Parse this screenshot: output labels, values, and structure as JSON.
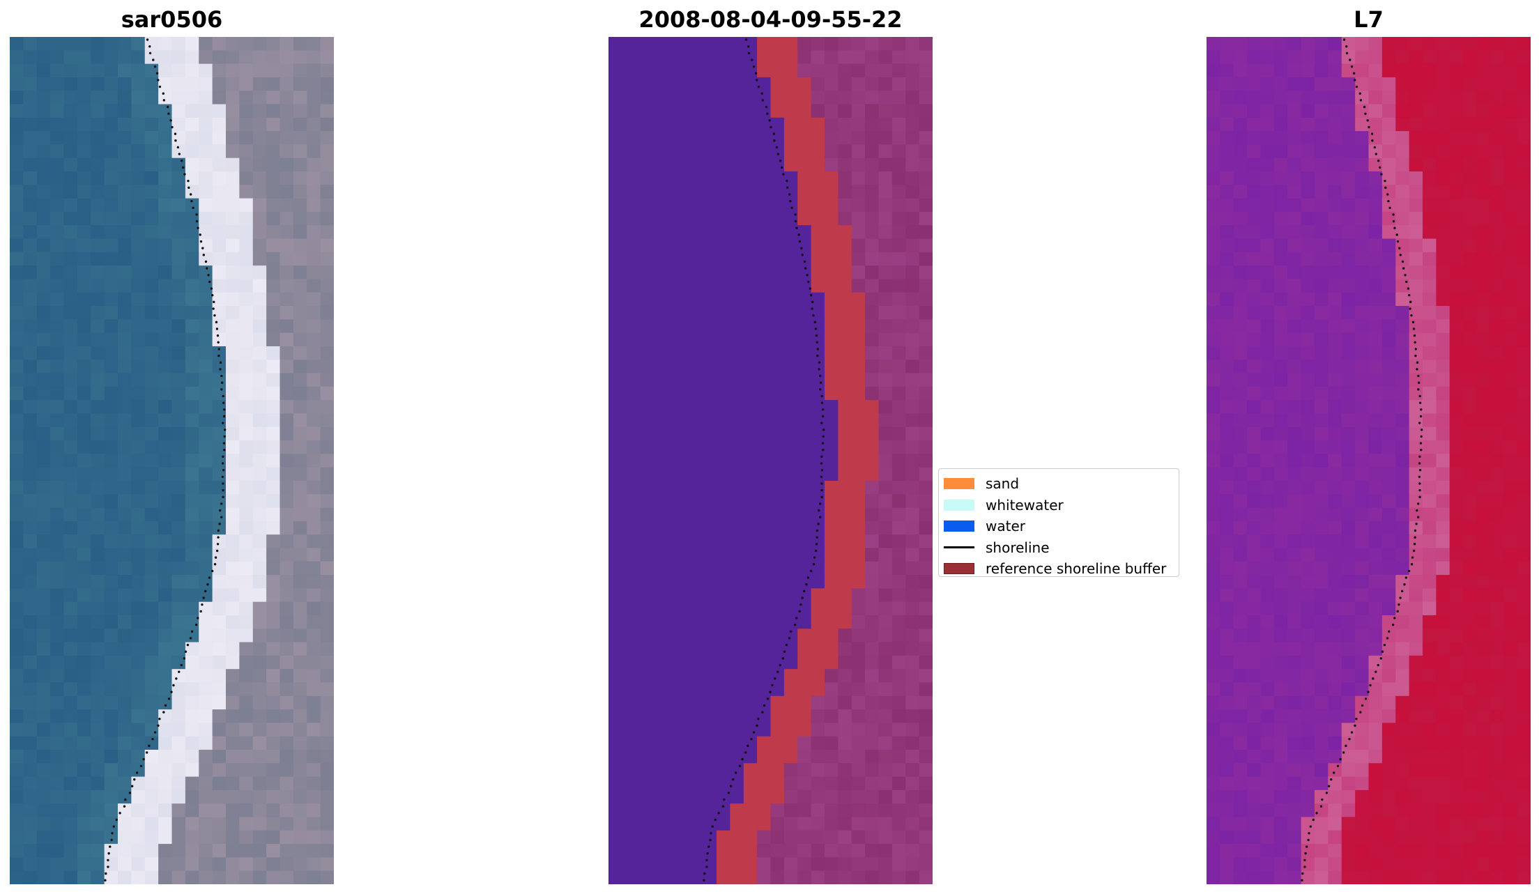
{
  "panels": [
    {
      "title": "sar0506",
      "kind": "rgb"
    },
    {
      "title": "2008-08-04-09-55-22",
      "kind": "classified"
    },
    {
      "title": "L7",
      "kind": "index"
    }
  ],
  "legend": {
    "items": [
      {
        "label": "sand",
        "color": "#ff8c3a",
        "type": "patch"
      },
      {
        "label": "whitewater",
        "color": "#c8fbf8",
        "type": "patch"
      },
      {
        "label": "water",
        "color": "#0a5cf0",
        "type": "patch"
      },
      {
        "label": "shoreline",
        "color": "#000000",
        "type": "line"
      },
      {
        "label": "reference shoreline buffer",
        "color": "#9b2f36",
        "type": "patch"
      }
    ]
  },
  "colors": {
    "water_class": "#55239a",
    "buffer": "#bf3a4a",
    "land_classified": "#8b3070",
    "index_water": "#8a2aa0",
    "index_land": "#c7103c",
    "rgb_water": "#2a5f86",
    "rgb_beach": "#eceaf4",
    "rgb_land": "#7d7f92"
  }
}
